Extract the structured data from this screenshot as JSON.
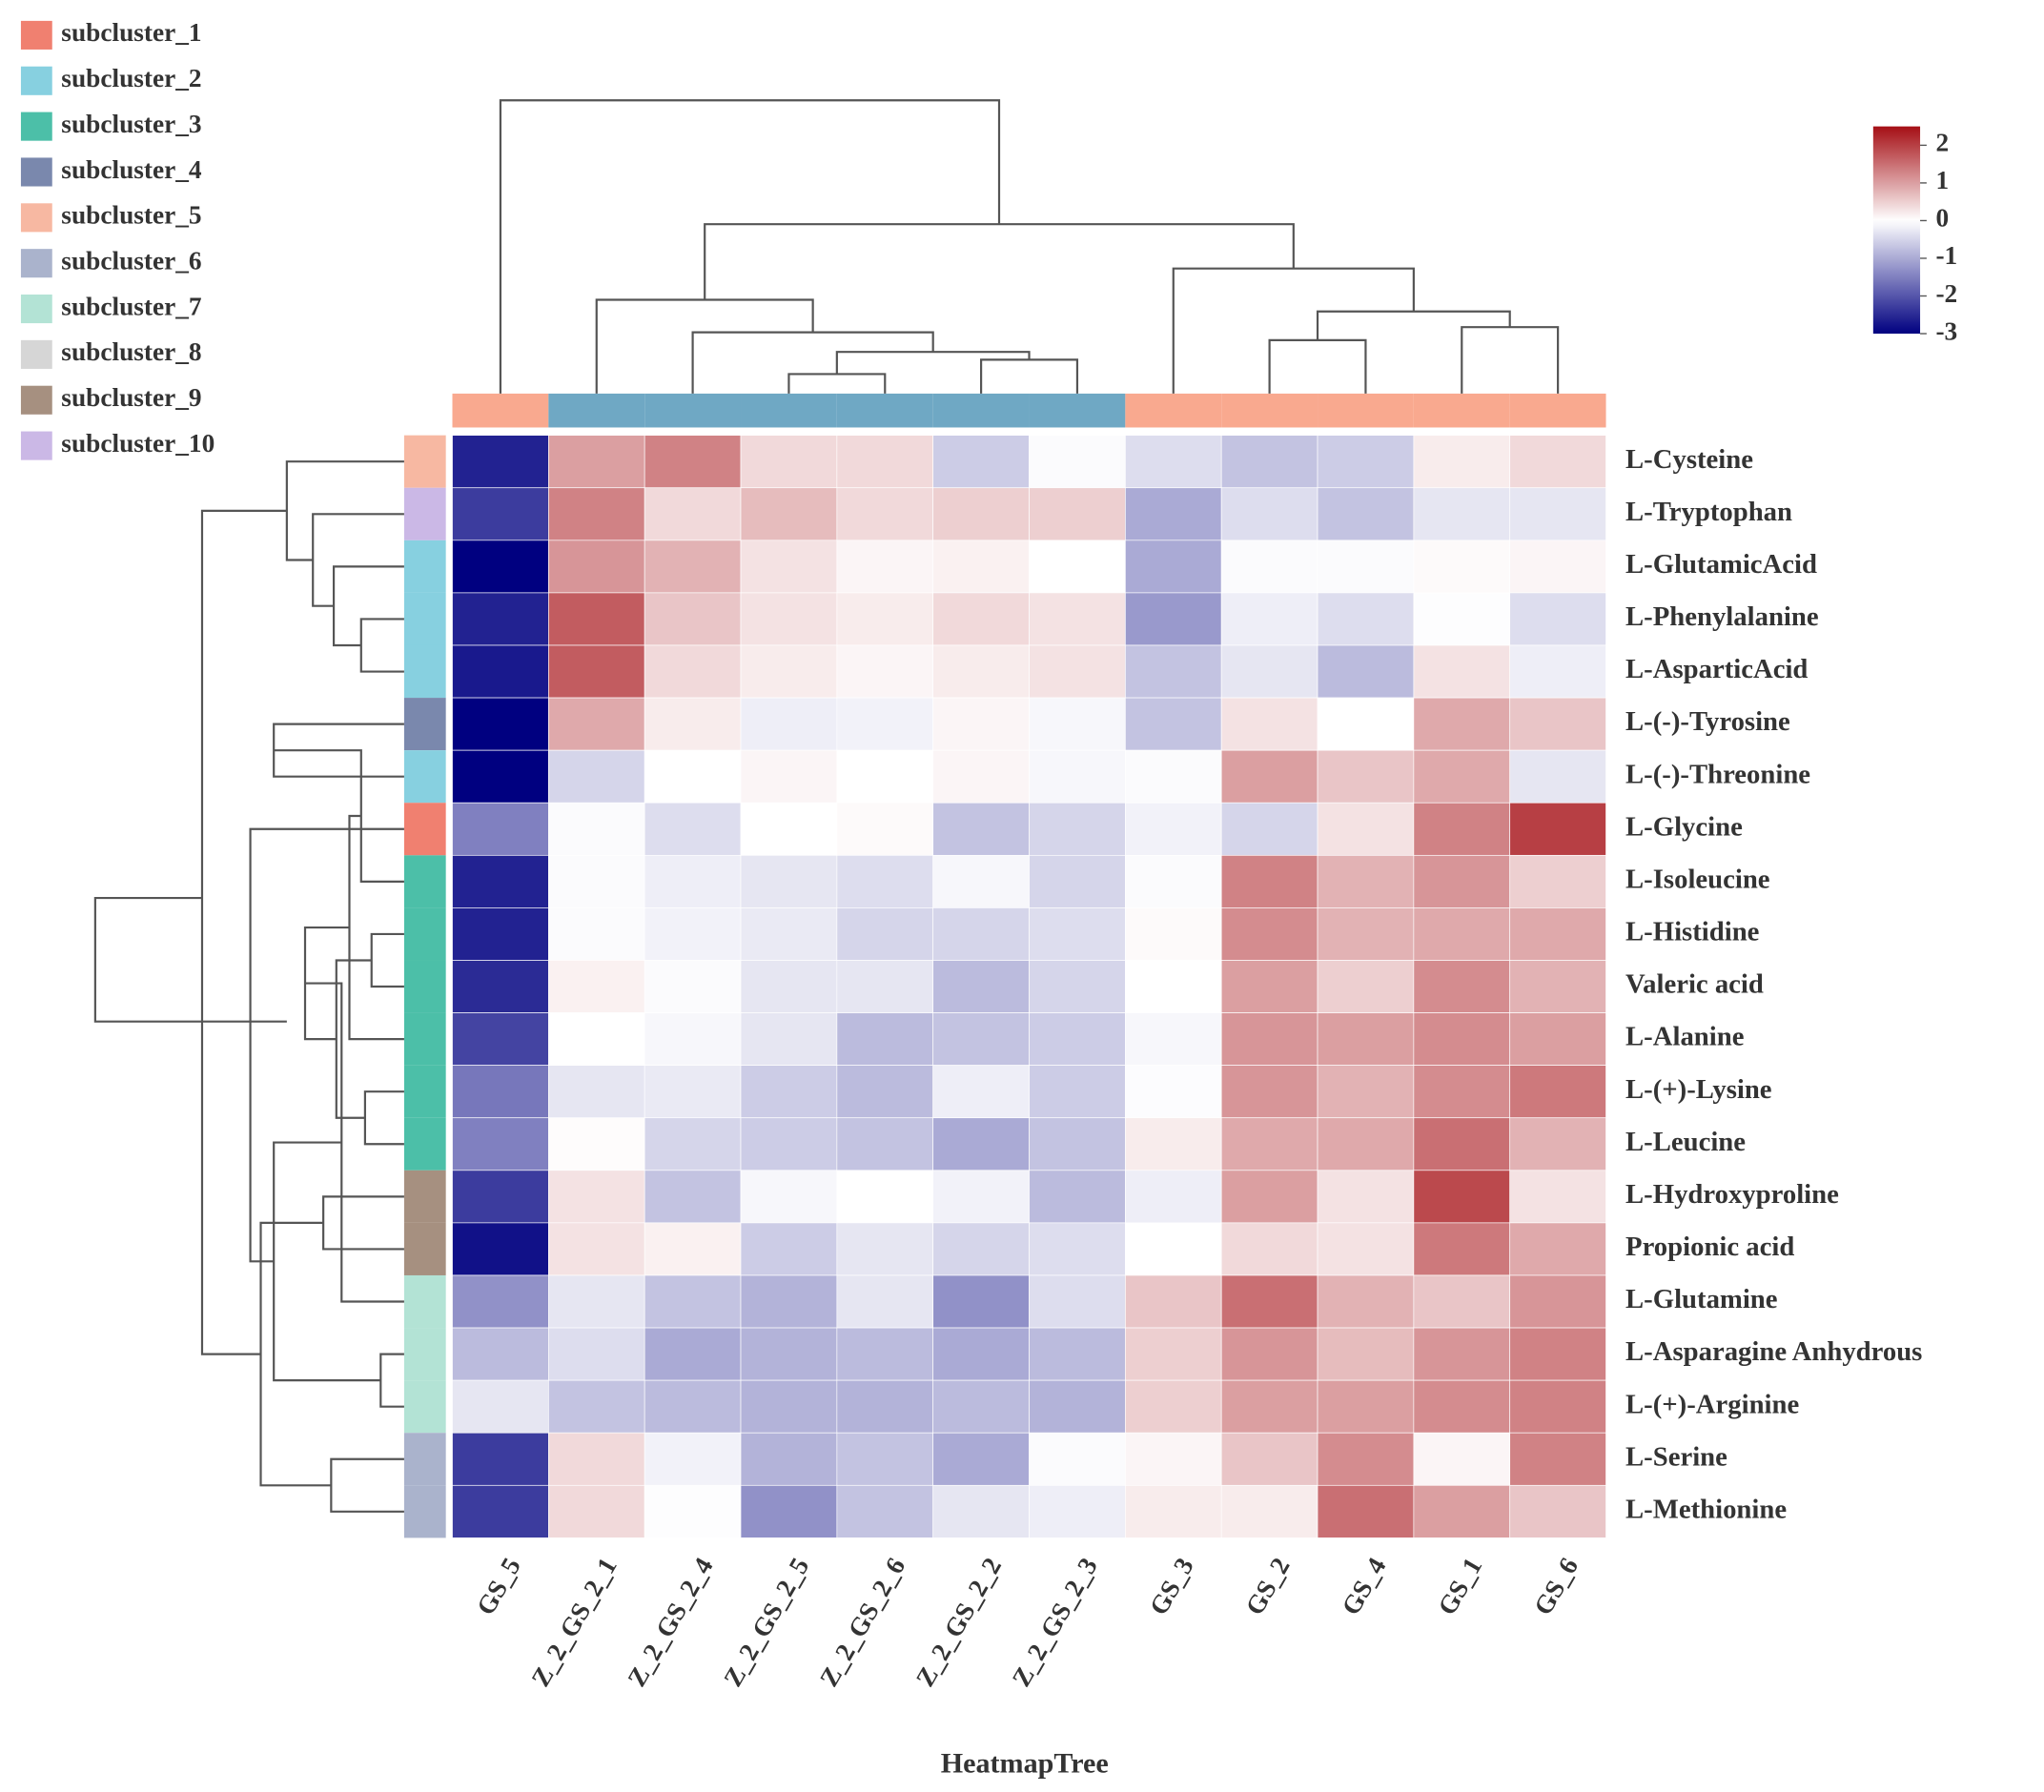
{
  "chart_data": {
    "type": "heatmap",
    "x_label": "HeatmapTree",
    "columns": [
      "GS_5",
      "Z_2_GS_2_1",
      "Z_2_GS_2_4",
      "Z_2_GS_2_5",
      "Z_2_GS_2_6",
      "Z_2_GS_2_2",
      "Z_2_GS_2_3",
      "GS_3",
      "GS_2",
      "GS_4",
      "GS_1",
      "GS_6"
    ],
    "rows": [
      "L-Cysteine",
      "L-Tryptophan",
      "L-GlutamicAcid",
      "L-Phenylalanine",
      "L-AsparticAcid",
      "L-(-)-Tyrosine",
      "L-(-)-Threonine",
      "L-Glycine",
      "L-Isoleucine",
      "L-Histidine",
      "Valeric acid",
      "L-Alanine",
      "L-(+)-Lysine",
      "L-Leucine",
      "L-Hydroxyproline",
      "Propionic acid",
      "L-Glutamine",
      "L-Asparagine Anhydrous",
      "L-(+)-Arginine",
      "L-Serine",
      "L-Methionine"
    ],
    "values": [
      [
        -2.6,
        1.0,
        1.3,
        0.4,
        0.4,
        -0.6,
        -0.05,
        -0.4,
        -0.7,
        -0.6,
        0.2,
        0.4
      ],
      [
        -2.3,
        1.3,
        0.4,
        0.7,
        0.4,
        0.5,
        0.5,
        -1.0,
        -0.4,
        -0.7,
        -0.3,
        -0.3
      ],
      [
        -3.0,
        1.1,
        0.8,
        0.3,
        0.1,
        0.15,
        0.0,
        -1.0,
        -0.05,
        -0.05,
        0.05,
        0.1
      ],
      [
        -2.6,
        1.7,
        0.6,
        0.3,
        0.2,
        0.4,
        0.3,
        -1.2,
        -0.2,
        -0.4,
        -0.02,
        -0.4
      ],
      [
        -2.7,
        1.7,
        0.4,
        0.2,
        0.1,
        0.2,
        0.3,
        -0.7,
        -0.3,
        -0.8,
        0.3,
        -0.2
      ],
      [
        -3.0,
        0.9,
        0.2,
        -0.2,
        -0.15,
        0.1,
        -0.1,
        -0.7,
        0.3,
        0.0,
        0.9,
        0.6
      ],
      [
        -3.0,
        -0.5,
        0.0,
        0.1,
        0.0,
        0.1,
        -0.1,
        -0.05,
        1.0,
        0.6,
        0.9,
        -0.3
      ],
      [
        -1.5,
        -0.05,
        -0.4,
        0.0,
        0.05,
        -0.7,
        -0.5,
        -0.15,
        -0.5,
        0.3,
        1.3,
        2.0
      ],
      [
        -2.6,
        -0.05,
        -0.2,
        -0.3,
        -0.4,
        -0.1,
        -0.5,
        -0.05,
        1.3,
        0.8,
        1.1,
        0.5
      ],
      [
        -2.6,
        -0.05,
        -0.15,
        -0.25,
        -0.5,
        -0.5,
        -0.4,
        0.05,
        1.2,
        0.8,
        0.9,
        0.9
      ],
      [
        -2.5,
        0.15,
        -0.05,
        -0.3,
        -0.3,
        -0.8,
        -0.5,
        0.0,
        1.0,
        0.5,
        1.2,
        0.8
      ],
      [
        -2.2,
        0.0,
        -0.1,
        -0.3,
        -0.8,
        -0.7,
        -0.6,
        -0.1,
        1.1,
        1.0,
        1.2,
        1.0
      ],
      [
        -1.6,
        -0.3,
        -0.25,
        -0.6,
        -0.8,
        -0.2,
        -0.6,
        -0.03,
        1.1,
        0.8,
        1.2,
        1.4
      ],
      [
        -1.5,
        0.03,
        -0.5,
        -0.6,
        -0.7,
        -1.0,
        -0.7,
        0.2,
        0.9,
        0.9,
        1.5,
        0.8
      ],
      [
        -2.3,
        0.3,
        -0.7,
        -0.1,
        0.0,
        -0.15,
        -0.8,
        -0.2,
        1.0,
        0.3,
        1.9,
        0.3
      ],
      [
        -2.8,
        0.3,
        0.15,
        -0.6,
        -0.3,
        -0.5,
        -0.4,
        0.0,
        0.4,
        0.3,
        1.4,
        0.9
      ],
      [
        -1.3,
        -0.3,
        -0.7,
        -0.9,
        -0.3,
        -1.3,
        -0.4,
        0.6,
        1.5,
        0.8,
        0.6,
        1.1
      ],
      [
        -0.8,
        -0.4,
        -1.0,
        -0.9,
        -0.8,
        -1.0,
        -0.8,
        0.5,
        1.1,
        0.7,
        1.1,
        1.3
      ],
      [
        -0.3,
        -0.7,
        -0.8,
        -0.9,
        -0.9,
        -0.8,
        -0.9,
        0.5,
        1.0,
        1.0,
        1.2,
        1.3
      ],
      [
        -2.3,
        0.4,
        -0.15,
        -0.9,
        -0.7,
        -1.0,
        -0.05,
        0.1,
        0.6,
        1.2,
        0.1,
        1.3
      ],
      [
        -2.3,
        0.4,
        -0.02,
        -1.3,
        -0.7,
        -0.3,
        -0.2,
        0.2,
        0.2,
        1.5,
        1.0,
        0.6
      ]
    ],
    "colorscale": [
      [
        -3,
        "#000080"
      ],
      [
        0,
        "#ffffff"
      ],
      [
        2.5,
        "#a50f15"
      ]
    ],
    "zlim": [
      -3,
      2.5
    ],
    "zticks": [
      2,
      1,
      0,
      -1,
      -2,
      -3
    ],
    "column_colors": [
      "#f9a98f",
      "#6fa8c4",
      "#6fa8c4",
      "#6fa8c4",
      "#6fa8c4",
      "#6fa8c4",
      "#6fa8c4",
      "#f9a98f",
      "#f9a98f",
      "#f9a98f",
      "#f9a98f",
      "#f9a98f"
    ],
    "row_clusters": [
      4,
      9,
      1,
      1,
      1,
      3,
      1,
      0,
      2,
      2,
      2,
      2,
      2,
      2,
      8,
      8,
      6,
      6,
      6,
      5,
      5
    ],
    "legend": [
      {
        "name": "subcluster_1",
        "color": "#f08070"
      },
      {
        "name": "subcluster_2",
        "color": "#87d0e0"
      },
      {
        "name": "subcluster_3",
        "color": "#4cbfa8"
      },
      {
        "name": "subcluster_4",
        "color": "#7a88ad"
      },
      {
        "name": "subcluster_5",
        "color": "#f7b8a2"
      },
      {
        "name": "subcluster_6",
        "color": "#aab3cc"
      },
      {
        "name": "subcluster_7",
        "color": "#b3e3d5"
      },
      {
        "name": "subcluster_8",
        "color": "#d6d6d6"
      },
      {
        "name": "subcluster_9",
        "color": "#a69080"
      },
      {
        "name": "subcluster_10",
        "color": "#cbb8e6"
      }
    ]
  }
}
